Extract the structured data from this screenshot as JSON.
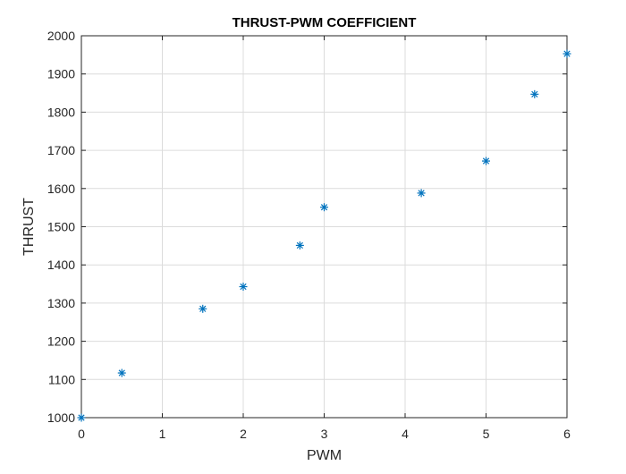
{
  "chart_data": {
    "type": "scatter",
    "title": "THRUST-PWM COEFFICIENT",
    "xlabel": "PWM",
    "ylabel": "THRUST",
    "xlim": [
      0,
      6
    ],
    "ylim": [
      1000,
      2000
    ],
    "xticks": [
      "0",
      "1",
      "2",
      "3",
      "4",
      "5",
      "6"
    ],
    "yticks": [
      "1000",
      "1100",
      "1200",
      "1300",
      "1400",
      "1500",
      "1600",
      "1700",
      "1800",
      "1900",
      "2000"
    ],
    "grid": true,
    "marker": "asterisk",
    "marker_color": "#0072BD",
    "series": [
      {
        "x": [
          0,
          0.5,
          1.5,
          2,
          2.7,
          3,
          4.2,
          5,
          5.6,
          6
        ],
        "y": [
          1000,
          1117,
          1285,
          1343,
          1451,
          1551,
          1588,
          1672,
          1847,
          1953
        ]
      }
    ]
  }
}
